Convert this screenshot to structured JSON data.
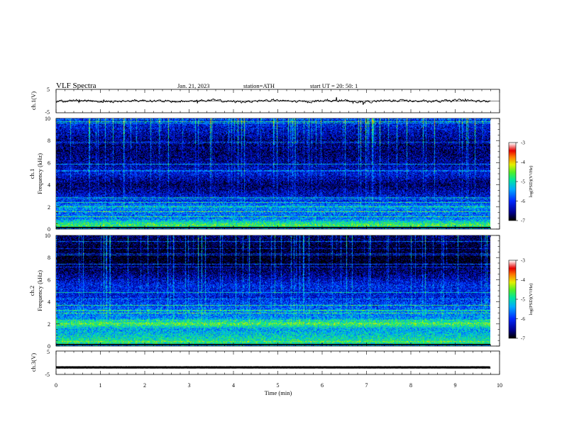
{
  "header": {
    "title": "VLF  Spectra",
    "date": "Jan. 21, 2023",
    "station": "station=ATH",
    "start": "start  UT  =    20: 50: 1"
  },
  "chart_data": [
    {
      "type": "line",
      "panel": "ch1-waveform",
      "ylabel": "ch.1(V)",
      "ylim": [
        -5,
        5
      ],
      "yticks": [
        "5",
        "-5"
      ],
      "trace_mean": 0,
      "trace_amplitude": 0.8,
      "color": "#000000"
    },
    {
      "type": "heatmap",
      "panel": "ch1-spectrogram",
      "ylabel": "Frequency  (kHz)",
      "channel_label": "ch.1",
      "ylim": [
        0,
        10
      ],
      "yticks": [
        "0",
        "2",
        "4",
        "6",
        "8",
        "10"
      ],
      "intensity_profile": [
        {
          "f": 0.0,
          "v": -5.5
        },
        {
          "f": 0.3,
          "v": -4.6
        },
        {
          "f": 0.6,
          "v": -5.0
        },
        {
          "f": 0.9,
          "v": -5.6
        },
        {
          "f": 1.5,
          "v": -5.7
        },
        {
          "f": 2.0,
          "v": -5.4
        },
        {
          "f": 2.3,
          "v": -5.9
        },
        {
          "f": 3.0,
          "v": -6.3
        },
        {
          "f": 4.0,
          "v": -6.7
        },
        {
          "f": 5.0,
          "v": -6.2
        },
        {
          "f": 6.0,
          "v": -6.5
        },
        {
          "f": 7.0,
          "v": -6.7
        },
        {
          "f": 8.0,
          "v": -6.4
        },
        {
          "f": 9.0,
          "v": -6.1
        },
        {
          "f": 10.0,
          "v": -5.8
        }
      ],
      "colorbar": {
        "label": "log(PSD)(V²/Hz)",
        "range": [
          -7,
          -3
        ],
        "ticks": [
          "-3",
          "-4",
          "-5",
          "-6",
          "-7"
        ]
      }
    },
    {
      "type": "heatmap",
      "panel": "ch2-spectrogram",
      "ylabel": "Frequency  (kHz)",
      "channel_label": "ch.2",
      "ylim": [
        0,
        10
      ],
      "yticks": [
        "0",
        "2",
        "4",
        "6",
        "8",
        "10"
      ],
      "intensity_profile": [
        {
          "f": 0.0,
          "v": -5.4
        },
        {
          "f": 0.3,
          "v": -4.8
        },
        {
          "f": 0.8,
          "v": -5.1
        },
        {
          "f": 1.5,
          "v": -5.4
        },
        {
          "f": 2.0,
          "v": -4.6
        },
        {
          "f": 2.5,
          "v": -5.5
        },
        {
          "f": 3.0,
          "v": -5.6
        },
        {
          "f": 3.5,
          "v": -5.8
        },
        {
          "f": 4.5,
          "v": -6.2
        },
        {
          "f": 5.5,
          "v": -6.1
        },
        {
          "f": 6.5,
          "v": -6.6
        },
        {
          "f": 7.5,
          "v": -6.9
        },
        {
          "f": 8.5,
          "v": -6.8
        },
        {
          "f": 9.5,
          "v": -6.6
        },
        {
          "f": 10.0,
          "v": -6.5
        }
      ],
      "colorbar": {
        "label": "log(PSD)(V²/Hz)",
        "range": [
          -7,
          -3
        ],
        "ticks": [
          "-3",
          "-4",
          "-5",
          "-6",
          "-7"
        ]
      }
    },
    {
      "type": "line",
      "panel": "ch3-waveform",
      "ylabel": "ch.3(V)",
      "ylim": [
        -5,
        5
      ],
      "yticks": [
        "5",
        "-5"
      ],
      "trace_mean": -2,
      "trace_amplitude": 0.2,
      "color": "#000000"
    }
  ],
  "xaxis": {
    "label": "Time  (min)",
    "xlim": [
      0,
      10
    ],
    "ticks": [
      "0",
      "1",
      "2",
      "3",
      "4",
      "5",
      "6",
      "7",
      "8",
      "9",
      "10"
    ],
    "data_end": 9.8
  }
}
